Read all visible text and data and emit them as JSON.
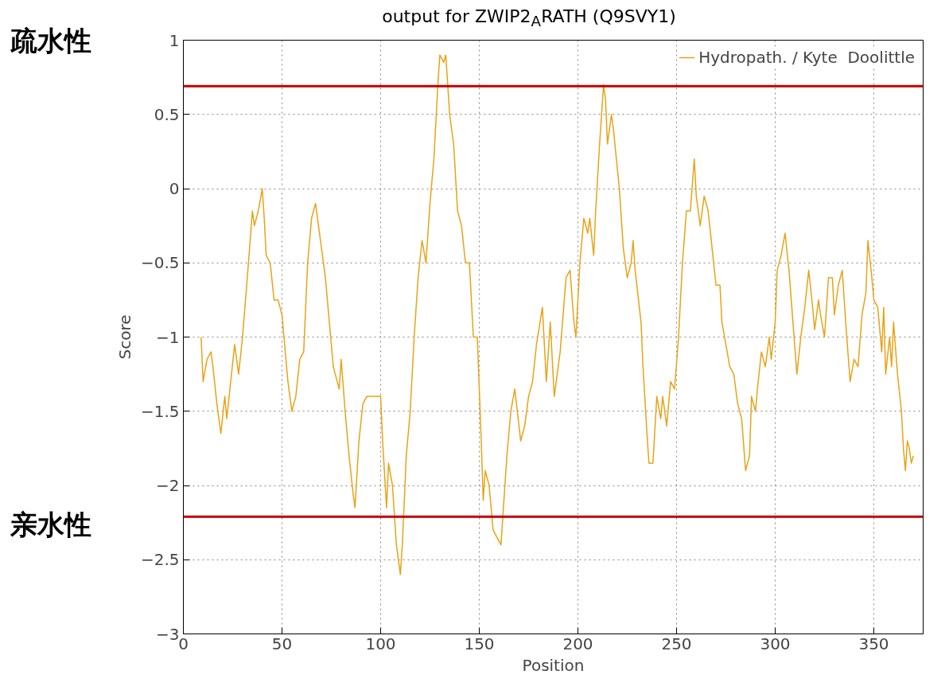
{
  "chart_data": {
    "type": "line",
    "title": "output for ZWIP2$_{A}$RATH (Q9SVY1)",
    "xlabel": "Position",
    "ylabel": "Score",
    "xlim": [
      0,
      375
    ],
    "xticks": [
      0,
      50,
      100,
      150,
      200,
      250,
      300,
      350
    ],
    "ylim": [
      -3,
      1
    ],
    "yticks": [
      -3,
      -2.5,
      -2,
      -1.5,
      -1,
      -0.5,
      0,
      0.5,
      1
    ],
    "grid": true,
    "legend": "top right",
    "line_style": "solid",
    "marker": "none",
    "annotations": [
      "疏水性",
      "亲水性"
    ],
    "ref_lines": [
      {
        "axis": "y",
        "value": 0.69,
        "label": null,
        "color": "#c00000"
      },
      {
        "axis": "y",
        "value": -2.21,
        "label": null,
        "color": "#c00000"
      }
    ],
    "series": [
      {
        "name": "Hydropath. / Kyte  Doolittle",
        "color": "#e8a317",
        "x": [
          9,
          10,
          12,
          14,
          15,
          17,
          19,
          21,
          22,
          24,
          26,
          28,
          30,
          33,
          35,
          36,
          38,
          40,
          41,
          42,
          44,
          46,
          48,
          50,
          53,
          55,
          57,
          59,
          61,
          63,
          65,
          67,
          69,
          72,
          74,
          76,
          77,
          79,
          80,
          82,
          84,
          86,
          87,
          89,
          91,
          93,
          96,
          100,
          101,
          103,
          104,
          106,
          108,
          110,
          111,
          113,
          115,
          117,
          119,
          121,
          123,
          125,
          127,
          129,
          130,
          132,
          133,
          135,
          137,
          139,
          141,
          143,
          145,
          147,
          149,
          151,
          152,
          153,
          155,
          157,
          159,
          161,
          162,
          164,
          166,
          168,
          171,
          173,
          175,
          177,
          179,
          182,
          184,
          186,
          188,
          191,
          194,
          196,
          198,
          199,
          201,
          203,
          205,
          206,
          208,
          209,
          211,
          213,
          214,
          215,
          217,
          218,
          221,
          223,
          225,
          227,
          228,
          229,
          232,
          233,
          235,
          236,
          238,
          240,
          242,
          243,
          245,
          247,
          249,
          251,
          253,
          255,
          257,
          259,
          260,
          262,
          264,
          266,
          268,
          270,
          272,
          273,
          275,
          277,
          279,
          281,
          283,
          285,
          287,
          288,
          290,
          291,
          293,
          295,
          297,
          298,
          300,
          301,
          303,
          305,
          307,
          309,
          311,
          313,
          315,
          317,
          319,
          320,
          322,
          323,
          325,
          327,
          329,
          330,
          332,
          334,
          336,
          338,
          340,
          342,
          344,
          346,
          347,
          349,
          350,
          352,
          354,
          355,
          356,
          358,
          359,
          360,
          362,
          364,
          365,
          366,
          367,
          368,
          369,
          370
        ],
        "values": [
          -1.0,
          -1.3,
          -1.15,
          -1.1,
          -1.2,
          -1.45,
          -1.65,
          -1.4,
          -1.55,
          -1.3,
          -1.05,
          -1.25,
          -1.0,
          -0.5,
          -0.15,
          -0.25,
          -0.15,
          0.0,
          -0.2,
          -0.45,
          -0.5,
          -0.75,
          -0.75,
          -0.85,
          -1.3,
          -1.5,
          -1.4,
          -1.15,
          -1.1,
          -0.5,
          -0.2,
          -0.1,
          -0.3,
          -0.6,
          -0.9,
          -1.2,
          -1.25,
          -1.35,
          -1.15,
          -1.5,
          -1.8,
          -2.05,
          -2.15,
          -1.7,
          -1.45,
          -1.4,
          -1.4,
          -1.4,
          -1.7,
          -2.15,
          -1.85,
          -2.0,
          -2.4,
          -2.6,
          -2.4,
          -1.8,
          -1.5,
          -1.0,
          -0.6,
          -0.35,
          -0.5,
          -0.1,
          0.2,
          0.7,
          0.9,
          0.85,
          0.9,
          0.5,
          0.3,
          -0.15,
          -0.25,
          -0.5,
          -0.5,
          -1.0,
          -1.0,
          -1.7,
          -2.1,
          -1.9,
          -2.0,
          -2.3,
          -2.35,
          -2.4,
          -2.2,
          -1.8,
          -1.5,
          -1.35,
          -1.7,
          -1.6,
          -1.4,
          -1.3,
          -1.05,
          -0.8,
          -1.3,
          -0.9,
          -1.4,
          -1.1,
          -0.6,
          -0.55,
          -0.9,
          -1.0,
          -0.5,
          -0.2,
          -0.3,
          -0.2,
          -0.45,
          -0.15,
          0.3,
          0.7,
          0.6,
          0.3,
          0.5,
          0.4,
          0.0,
          -0.4,
          -0.6,
          -0.5,
          -0.35,
          -0.55,
          -0.9,
          -1.2,
          -1.65,
          -1.85,
          -1.85,
          -1.4,
          -1.55,
          -1.4,
          -1.6,
          -1.3,
          -1.35,
          -1.0,
          -0.5,
          -0.15,
          -0.15,
          0.2,
          -0.05,
          -0.25,
          -0.05,
          -0.15,
          -0.4,
          -0.65,
          -0.65,
          -0.9,
          -1.05,
          -1.2,
          -1.25,
          -1.45,
          -1.55,
          -1.9,
          -1.8,
          -1.4,
          -1.5,
          -1.35,
          -1.1,
          -1.2,
          -1.0,
          -1.15,
          -0.9,
          -0.55,
          -0.45,
          -0.3,
          -0.55,
          -0.9,
          -1.25,
          -1.0,
          -0.8,
          -0.55,
          -0.8,
          -0.95,
          -0.75,
          -0.85,
          -1.0,
          -0.6,
          -0.6,
          -0.85,
          -0.65,
          -0.55,
          -0.95,
          -1.3,
          -1.15,
          -1.2,
          -0.85,
          -0.7,
          -0.35,
          -0.6,
          -0.75,
          -0.8,
          -1.1,
          -0.8,
          -1.25,
          -1.0,
          -1.2,
          -0.9,
          -1.25,
          -1.5,
          -1.75,
          -1.9,
          -1.7,
          -1.75,
          -1.85,
          -1.8
        ]
      }
    ]
  }
}
